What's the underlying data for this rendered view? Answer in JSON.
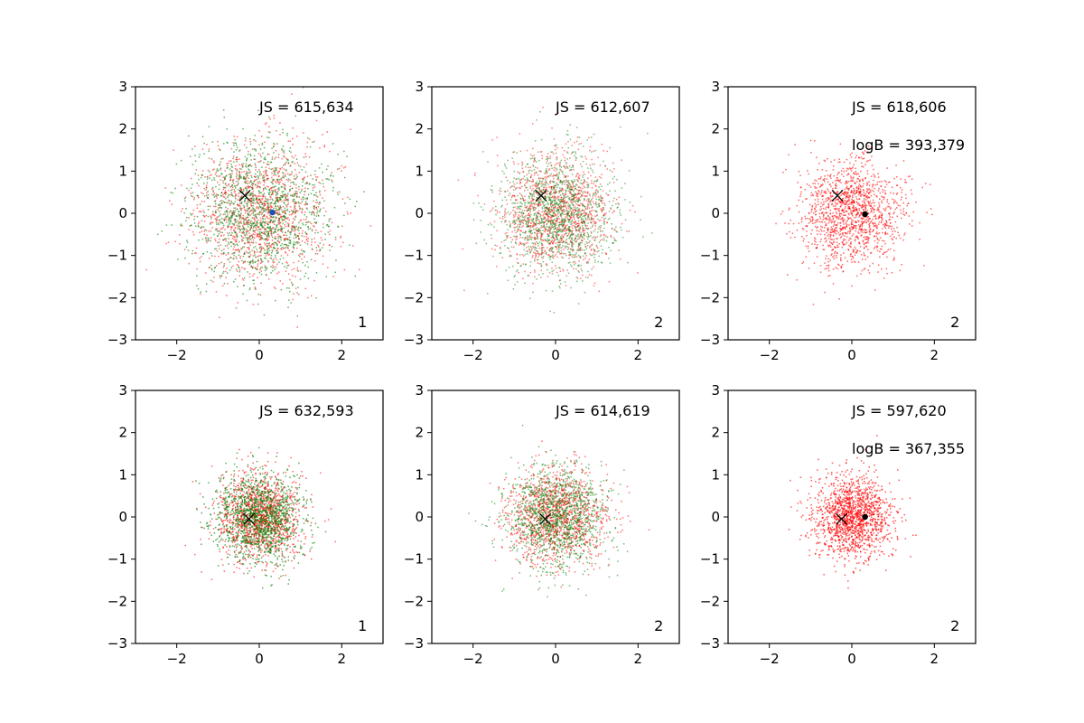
{
  "figure": {
    "rows": 2,
    "cols": 3
  },
  "chart_data": [
    {
      "type": "scatter",
      "xlim": [
        -3,
        3
      ],
      "ylim": [
        -3,
        3
      ],
      "xticks": [
        -2,
        0,
        2
      ],
      "yticks": [
        -3,
        -2,
        -1,
        0,
        1,
        2,
        3
      ],
      "js_label": "JS = 615,634",
      "logb_label": "",
      "corner_label": "1",
      "spread": 0.82,
      "points_per_series": 1300,
      "series": [
        {
          "color": "#ff0000",
          "alpha": 0.55
        },
        {
          "color": "#007f00",
          "alpha": 0.6
        }
      ],
      "markers": [
        {
          "shape": "x",
          "x": -0.35,
          "y": 0.42,
          "color": "#000000"
        },
        {
          "shape": "dot",
          "x": 0.32,
          "y": 0.02,
          "color": "#1f4fb4"
        }
      ]
    },
    {
      "type": "scatter",
      "xlim": [
        -3,
        3
      ],
      "ylim": [
        -3,
        3
      ],
      "xticks": [
        -2,
        0,
        2
      ],
      "yticks": [
        -3,
        -2,
        -1,
        0,
        1,
        2,
        3
      ],
      "js_label": "JS = 612,607",
      "logb_label": "",
      "corner_label": "2",
      "spread": 0.68,
      "points_per_series": 1300,
      "series": [
        {
          "color": "#ff0000",
          "alpha": 0.5
        },
        {
          "color": "#007f00",
          "alpha": 0.5
        }
      ],
      "markers": [
        {
          "shape": "x",
          "x": -0.35,
          "y": 0.42,
          "color": "#000000"
        }
      ]
    },
    {
      "type": "scatter",
      "xlim": [
        -3,
        3
      ],
      "ylim": [
        -3,
        3
      ],
      "xticks": [
        -2,
        0,
        2
      ],
      "yticks": [
        -3,
        -2,
        -1,
        0,
        1,
        2,
        3
      ],
      "js_label": "JS = 618,606",
      "logb_label": "logB = 393,379",
      "corner_label": "2",
      "spread": 0.62,
      "points_per_series": 1400,
      "series": [
        {
          "color": "#ff0000",
          "alpha": 0.6
        }
      ],
      "markers": [
        {
          "shape": "x",
          "x": -0.35,
          "y": 0.42,
          "color": "#000000"
        },
        {
          "shape": "dot",
          "x": 0.32,
          "y": -0.02,
          "color": "#000000"
        }
      ]
    },
    {
      "type": "scatter",
      "xlim": [
        -3,
        3
      ],
      "ylim": [
        -3,
        3
      ],
      "xticks": [
        -2,
        0,
        2
      ],
      "yticks": [
        -3,
        -2,
        -1,
        0,
        1,
        2,
        3
      ],
      "js_label": "JS = 632,593",
      "logb_label": "",
      "corner_label": "1",
      "spread": 0.52,
      "points_per_series": 1300,
      "series": [
        {
          "color": "#ff0000",
          "alpha": 0.6
        },
        {
          "color": "#007f00",
          "alpha": 0.65
        }
      ],
      "markers": [
        {
          "shape": "x",
          "x": -0.25,
          "y": -0.05,
          "color": "#000000"
        }
      ]
    },
    {
      "type": "scatter",
      "xlim": [
        -3,
        3
      ],
      "ylim": [
        -3,
        3
      ],
      "xticks": [
        -2,
        0,
        2
      ],
      "yticks": [
        -3,
        -2,
        -1,
        0,
        1,
        2,
        3
      ],
      "js_label": "JS = 614,619",
      "logb_label": "",
      "corner_label": "2",
      "spread": 0.58,
      "points_per_series": 1300,
      "series": [
        {
          "color": "#ff0000",
          "alpha": 0.55
        },
        {
          "color": "#007f00",
          "alpha": 0.55
        }
      ],
      "markers": [
        {
          "shape": "x",
          "x": -0.25,
          "y": -0.05,
          "color": "#000000"
        }
      ]
    },
    {
      "type": "scatter",
      "xlim": [
        -3,
        3
      ],
      "ylim": [
        -3,
        3
      ],
      "xticks": [
        -2,
        0,
        2
      ],
      "yticks": [
        -3,
        -2,
        -1,
        0,
        1,
        2,
        3
      ],
      "js_label": "JS = 597,620",
      "logb_label": "logB = 367,355",
      "corner_label": "2",
      "spread": 0.48,
      "points_per_series": 1500,
      "series": [
        {
          "color": "#ff0000",
          "alpha": 0.65
        }
      ],
      "markers": [
        {
          "shape": "x",
          "x": -0.25,
          "y": -0.05,
          "color": "#000000"
        },
        {
          "shape": "dot",
          "x": 0.32,
          "y": 0.0,
          "color": "#000000"
        }
      ]
    }
  ]
}
